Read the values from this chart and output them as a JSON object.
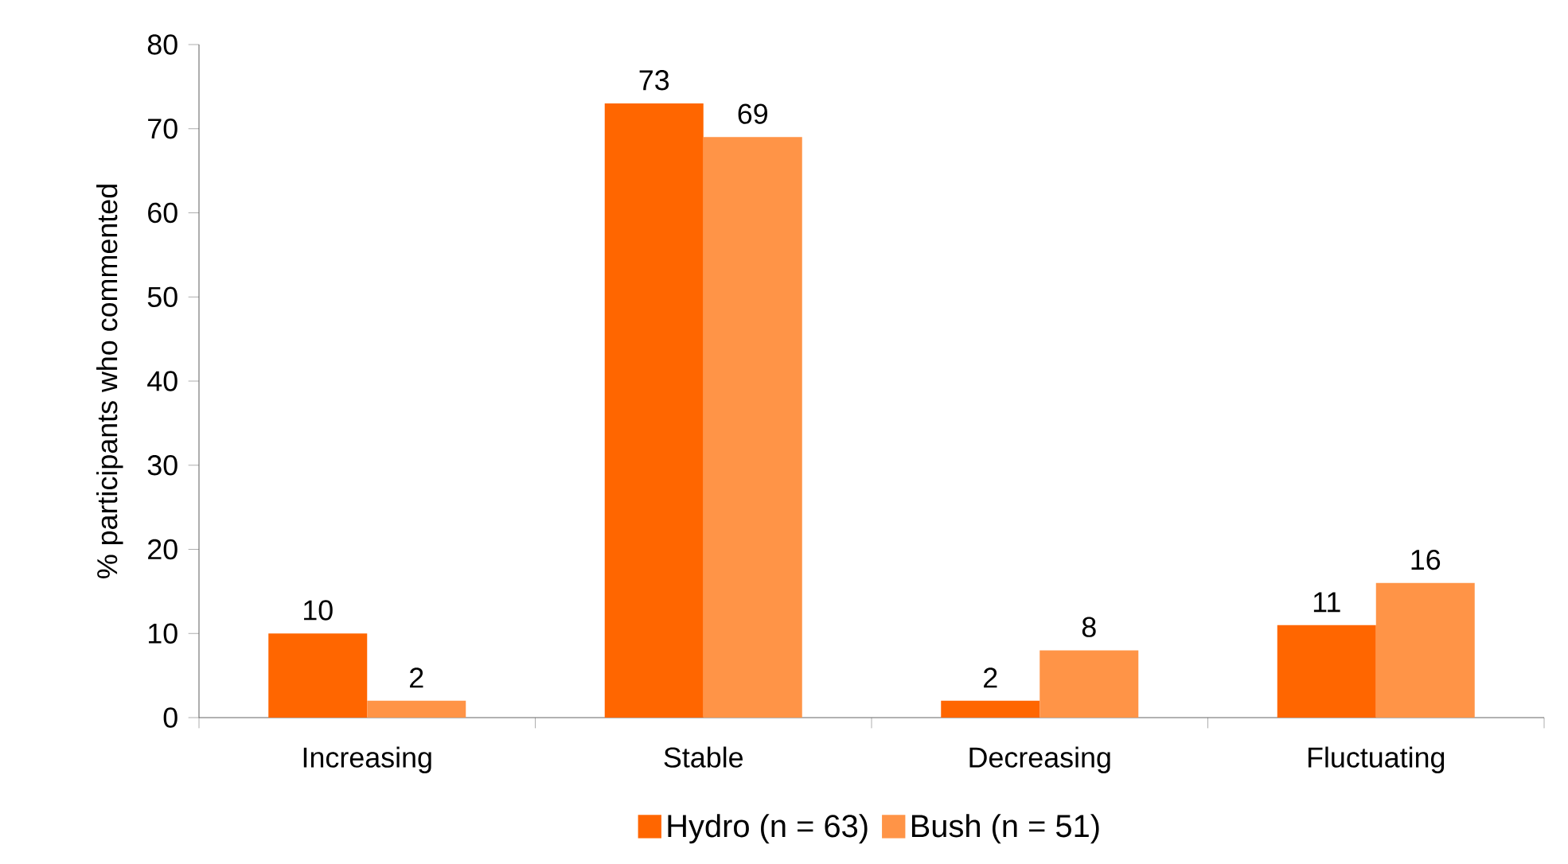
{
  "chart_data": {
    "type": "bar",
    "ylabel": "% participants who commented",
    "categories": [
      "Increasing",
      "Stable",
      "Decreasing",
      "Fluctuating"
    ],
    "series": [
      {
        "name": "Hydro (n = 63)",
        "color": "#ff6600",
        "values": [
          10,
          73,
          2,
          11
        ]
      },
      {
        "name": "Bush (n = 51)",
        "color": "#ff9447",
        "values": [
          2,
          69,
          8,
          16
        ]
      }
    ],
    "ylim": [
      0,
      80
    ],
    "yticks": [
      0,
      10,
      20,
      30,
      40,
      50,
      60,
      70,
      80
    ],
    "data_labels": true,
    "legend": "bottom",
    "grid": false
  }
}
